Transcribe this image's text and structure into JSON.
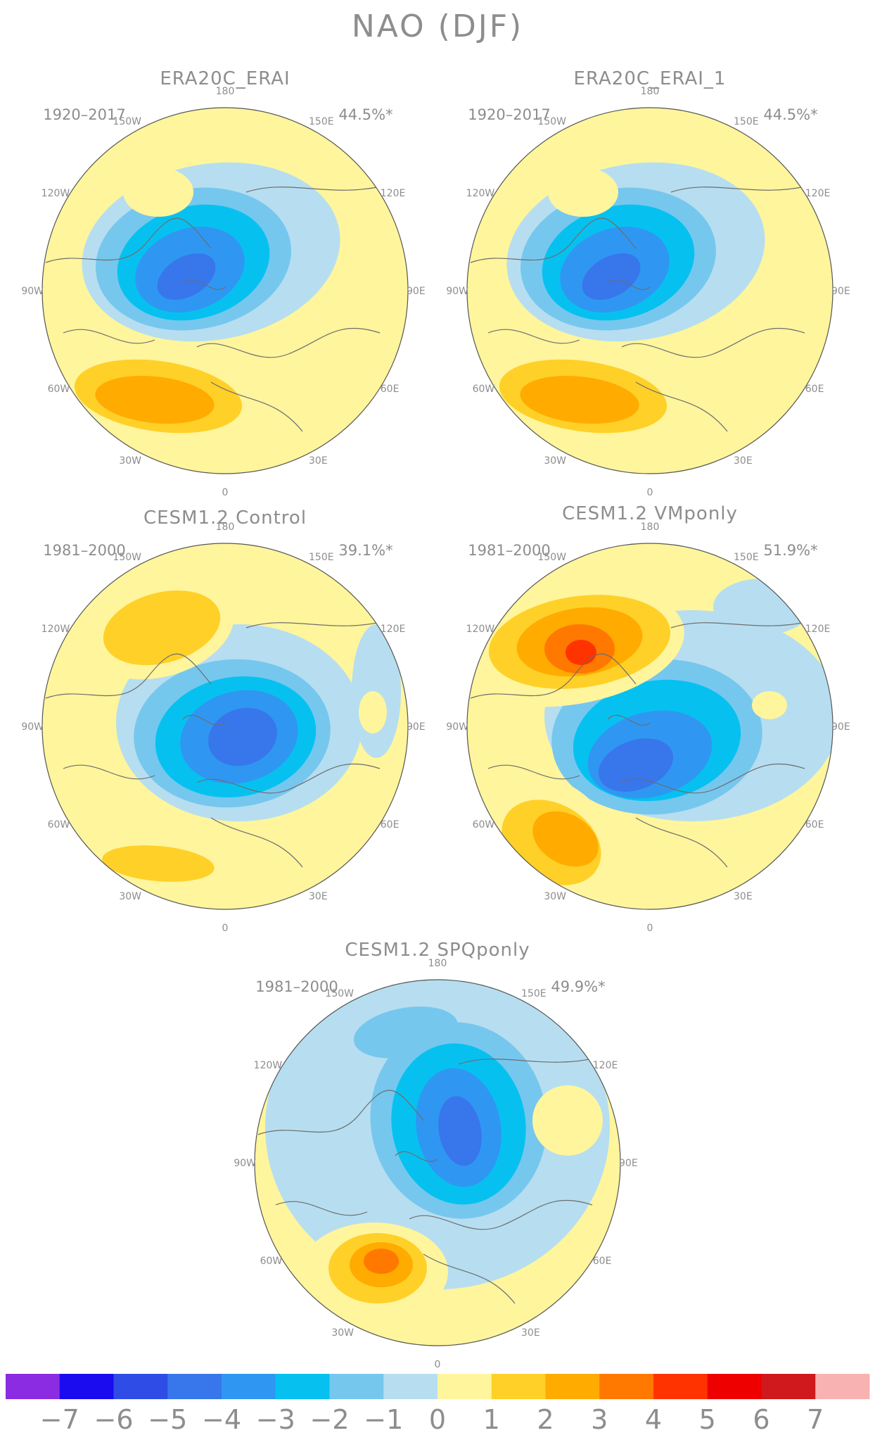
{
  "title": "NAO (DJF)",
  "colors": {
    "text": "#8d8d8d",
    "land_outline": "#6d6d6d",
    "circle": "#555555",
    "ocean_background": "#fff59d"
  },
  "longitude_labels": [
    "180",
    "150E",
    "120E",
    "90E",
    "60E",
    "30E",
    "0",
    "30W",
    "60W",
    "90W",
    "120W",
    "150W"
  ],
  "panels": [
    {
      "id": "era20c-erai",
      "title": "ERA20C_ERAI",
      "period": "1920–2017",
      "variance": "44.5%*"
    },
    {
      "id": "era20c-erai-1",
      "title": "ERA20C_ERAI_1",
      "period": "1920–2017",
      "variance": "44.5%*"
    },
    {
      "id": "cesm-control",
      "title": "CESM1.2 Control",
      "period": "1981–2000",
      "variance": "39.1%*"
    },
    {
      "id": "cesm-vmponly",
      "title": "CESM1.2 VMponly",
      "period": "1981–2000",
      "variance": "51.9%*"
    },
    {
      "id": "cesm-spqponly",
      "title": "CESM1.2 SPQponly",
      "period": "1981–2000",
      "variance": "49.9%*"
    }
  ],
  "colorbar": {
    "labels": [
      "−7",
      "−6",
      "−5",
      "−4",
      "−3",
      "−2",
      "−1",
      "0",
      "1",
      "2",
      "3",
      "4",
      "5",
      "6",
      "7"
    ],
    "colors": [
      "#8b2be2",
      "#1b0cf0",
      "#2f4de6",
      "#3876ec",
      "#2f97f2",
      "#06c1f0",
      "#76c7ee",
      "#b6def0",
      "#fff59d",
      "#ffd028",
      "#ffab00",
      "#ff7800",
      "#ff3300",
      "#ee0000",
      "#d0191c",
      "#f9b2b2"
    ]
  }
}
